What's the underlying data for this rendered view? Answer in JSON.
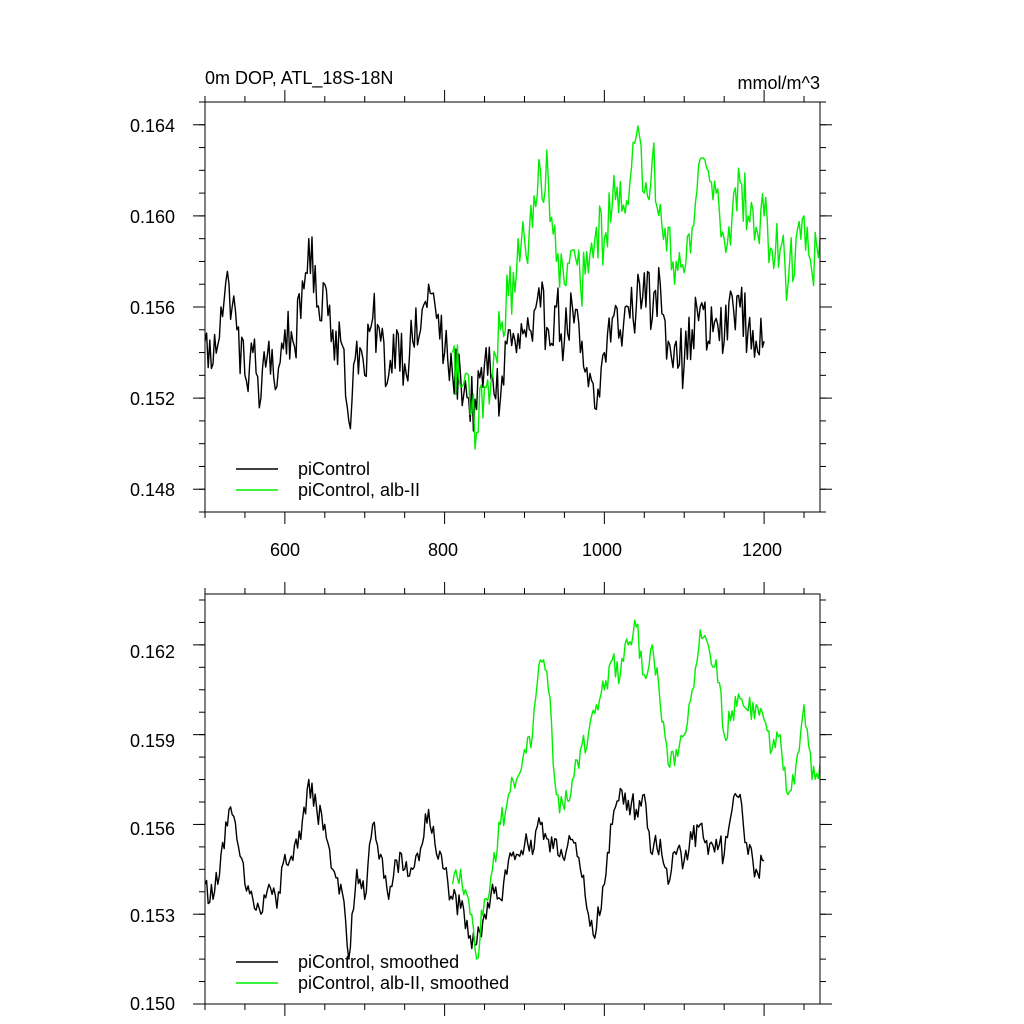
{
  "colors": {
    "picontrol": "#000000",
    "alb_ii": "#00ee00"
  },
  "chart_data": [
    {
      "type": "line",
      "title": "0m DOP, ATL_18S-18N",
      "units_label": "mmol/m^3",
      "xlim": [
        500,
        1270
      ],
      "ylim": [
        0.147,
        0.165
      ],
      "xticks": [
        600,
        800,
        1000,
        1200
      ],
      "xtick_labels": [
        "600",
        "800",
        "1000",
        "1200"
      ],
      "yticks": [
        0.148,
        0.152,
        0.156,
        0.16,
        0.164
      ],
      "ytick_labels": [
        "0.148",
        "0.152",
        "0.156",
        "0.160",
        "0.164"
      ],
      "legend_position": "bottom-left",
      "series": [
        {
          "name": "piControl",
          "color": "#000000",
          "x": [
            500,
            510,
            520,
            530,
            540,
            550,
            560,
            570,
            580,
            590,
            600,
            610,
            620,
            630,
            640,
            650,
            660,
            670,
            680,
            690,
            700,
            710,
            720,
            730,
            740,
            750,
            760,
            770,
            780,
            790,
            800,
            810,
            820,
            830,
            840,
            850,
            860,
            870,
            880,
            890,
            900,
            910,
            920,
            930,
            940,
            950,
            960,
            970,
            980,
            990,
            1000,
            1010,
            1020,
            1030,
            1040,
            1050,
            1060,
            1070,
            1080,
            1090,
            1100,
            1110,
            1120,
            1130,
            1140,
            1150,
            1160,
            1170,
            1180,
            1190,
            1200
          ],
          "y": [
            0.1545,
            0.1535,
            0.156,
            0.157,
            0.155,
            0.153,
            0.154,
            0.152,
            0.1545,
            0.1525,
            0.155,
            0.1545,
            0.1555,
            0.159,
            0.156,
            0.157,
            0.155,
            0.1545,
            0.151,
            0.1545,
            0.153,
            0.1555,
            0.1545,
            0.153,
            0.155,
            0.1535,
            0.1545,
            0.155,
            0.157,
            0.1555,
            0.154,
            0.153,
            0.153,
            0.152,
            0.1515,
            0.1535,
            0.153,
            0.152,
            0.155,
            0.154,
            0.155,
            0.1545,
            0.156,
            0.155,
            0.156,
            0.1545,
            0.156,
            0.154,
            0.1525,
            0.1515,
            0.154,
            0.1555,
            0.155,
            0.156,
            0.156,
            0.1575,
            0.1555,
            0.157,
            0.1545,
            0.1545,
            0.1535,
            0.155,
            0.156,
            0.1545,
            0.1555,
            0.1545,
            0.1565,
            0.156,
            0.155,
            0.1545,
            0.1545
          ]
        },
        {
          "name": "piControl, alb-II",
          "color": "#00ee00",
          "x": [
            810,
            820,
            830,
            840,
            850,
            860,
            870,
            880,
            890,
            900,
            910,
            920,
            930,
            940,
            950,
            960,
            970,
            980,
            990,
            1000,
            1010,
            1020,
            1030,
            1040,
            1050,
            1060,
            1070,
            1080,
            1090,
            1100,
            1110,
            1120,
            1130,
            1140,
            1150,
            1160,
            1170,
            1180,
            1190,
            1200,
            1210,
            1220,
            1230,
            1240,
            1250,
            1260,
            1270
          ],
          "y": [
            0.154,
            0.1525,
            0.153,
            0.1505,
            0.1525,
            0.153,
            0.155,
            0.1565,
            0.1575,
            0.159,
            0.1595,
            0.162,
            0.1615,
            0.158,
            0.157,
            0.1585,
            0.157,
            0.1575,
            0.1595,
            0.159,
            0.1605,
            0.1615,
            0.1605,
            0.1635,
            0.161,
            0.1625,
            0.1605,
            0.1595,
            0.158,
            0.1575,
            0.1595,
            0.1625,
            0.162,
            0.161,
            0.159,
            0.16,
            0.1615,
            0.16,
            0.1595,
            0.16,
            0.1585,
            0.1585,
            0.157,
            0.159,
            0.16,
            0.1575,
            0.159
          ]
        }
      ]
    },
    {
      "type": "line",
      "title": "",
      "xlim": [
        500,
        1270
      ],
      "ylim": [
        0.15,
        0.1637
      ],
      "xticks": [
        600,
        800,
        1000,
        1200
      ],
      "yticks": [
        0.15,
        0.153,
        0.156,
        0.159,
        0.162
      ],
      "ytick_labels": [
        "0.150",
        "0.153",
        "0.156",
        "0.159",
        "0.162"
      ],
      "legend_position": "bottom-left",
      "series": [
        {
          "name": "piControl, smoothed",
          "color": "#000000",
          "x": [
            500,
            510,
            520,
            530,
            540,
            550,
            560,
            570,
            580,
            590,
            600,
            610,
            620,
            630,
            640,
            650,
            660,
            670,
            680,
            690,
            700,
            710,
            720,
            730,
            740,
            750,
            760,
            770,
            780,
            790,
            800,
            810,
            820,
            830,
            840,
            850,
            860,
            870,
            880,
            890,
            900,
            910,
            920,
            930,
            940,
            950,
            960,
            970,
            980,
            990,
            1000,
            1010,
            1020,
            1030,
            1040,
            1050,
            1060,
            1070,
            1080,
            1090,
            1100,
            1110,
            1120,
            1130,
            1140,
            1150,
            1160,
            1170,
            1180,
            1190,
            1200
          ],
          "y": [
            0.154,
            0.1535,
            0.155,
            0.1565,
            0.1555,
            0.154,
            0.1535,
            0.153,
            0.154,
            0.1532,
            0.155,
            0.1548,
            0.1555,
            0.1575,
            0.1565,
            0.156,
            0.1545,
            0.154,
            0.1515,
            0.1545,
            0.1535,
            0.156,
            0.155,
            0.1535,
            0.1548,
            0.1545,
            0.1545,
            0.1552,
            0.1565,
            0.155,
            0.1545,
            0.1535,
            0.1532,
            0.1522,
            0.152,
            0.153,
            0.154,
            0.1535,
            0.1548,
            0.155,
            0.1553,
            0.155,
            0.156,
            0.1555,
            0.1555,
            0.1548,
            0.1555,
            0.1545,
            0.153,
            0.1525,
            0.154,
            0.156,
            0.1572,
            0.1568,
            0.1565,
            0.157,
            0.155,
            0.1555,
            0.154,
            0.155,
            0.1548,
            0.1555,
            0.156,
            0.155,
            0.1555,
            0.155,
            0.1565,
            0.157,
            0.155,
            0.1545,
            0.1548
          ]
        },
        {
          "name": "piControl, alb-II, smoothed",
          "color": "#00ee00",
          "x": [
            810,
            820,
            830,
            840,
            850,
            860,
            870,
            880,
            890,
            900,
            910,
            920,
            930,
            940,
            950,
            960,
            970,
            980,
            990,
            1000,
            1010,
            1020,
            1030,
            1040,
            1050,
            1060,
            1070,
            1080,
            1090,
            1100,
            1110,
            1120,
            1130,
            1140,
            1150,
            1160,
            1170,
            1180,
            1190,
            1200,
            1210,
            1220,
            1230,
            1240,
            1250,
            1260,
            1270
          ],
          "y": [
            0.154,
            0.1545,
            0.1535,
            0.1515,
            0.1535,
            0.1545,
            0.156,
            0.157,
            0.1575,
            0.1585,
            0.159,
            0.1615,
            0.1605,
            0.157,
            0.1565,
            0.1575,
            0.1585,
            0.159,
            0.16,
            0.1605,
            0.1615,
            0.161,
            0.162,
            0.1626,
            0.161,
            0.162,
            0.16,
            0.158,
            0.1585,
            0.159,
            0.1605,
            0.1625,
            0.162,
            0.1615,
            0.159,
            0.1598,
            0.1602,
            0.1598,
            0.16,
            0.1595,
            0.1585,
            0.159,
            0.157,
            0.158,
            0.16,
            0.1575,
            0.158
          ]
        }
      ]
    }
  ]
}
